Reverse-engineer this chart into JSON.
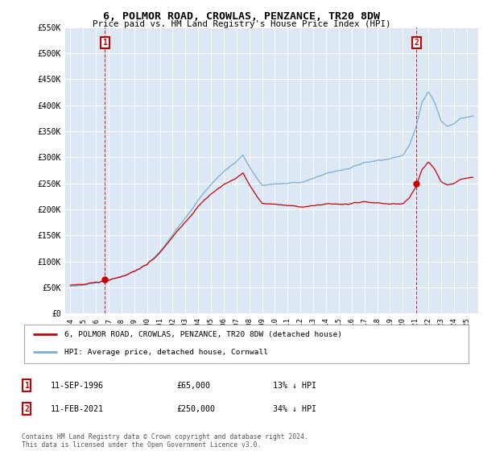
{
  "title": "6, POLMOR ROAD, CROWLAS, PENZANCE, TR20 8DW",
  "subtitle": "Price paid vs. HM Land Registry's House Price Index (HPI)",
  "ylim": [
    0,
    550000
  ],
  "yticks": [
    0,
    50000,
    100000,
    150000,
    200000,
    250000,
    300000,
    350000,
    400000,
    450000,
    500000,
    550000
  ],
  "ytick_labels": [
    "£0",
    "£50K",
    "£100K",
    "£150K",
    "£200K",
    "£250K",
    "£300K",
    "£350K",
    "£400K",
    "£450K",
    "£500K",
    "£550K"
  ],
  "sale1_year": 1996.708,
  "sale1_price": 65000,
  "sale1_date_label": "11-SEP-1996",
  "sale1_price_label": "£65,000",
  "sale1_hpi_label": "13% ↓ HPI",
  "sale2_year": 2021.083,
  "sale2_price": 250000,
  "sale2_date_label": "11-FEB-2021",
  "sale2_price_label": "£250,000",
  "sale2_hpi_label": "34% ↓ HPI",
  "property_color": "#cc0000",
  "hpi_color": "#7aadd4",
  "legend_property_label": "6, POLMOR ROAD, CROWLAS, PENZANCE, TR20 8DW (detached house)",
  "legend_hpi_label": "HPI: Average price, detached house, Cornwall",
  "footnote": "Contains HM Land Registry data © Crown copyright and database right 2024.\nThis data is licensed under the Open Government Licence v3.0.",
  "background_color": "#ffffff",
  "plot_bg_color": "#dce8f5",
  "grid_color": "#ffffff"
}
